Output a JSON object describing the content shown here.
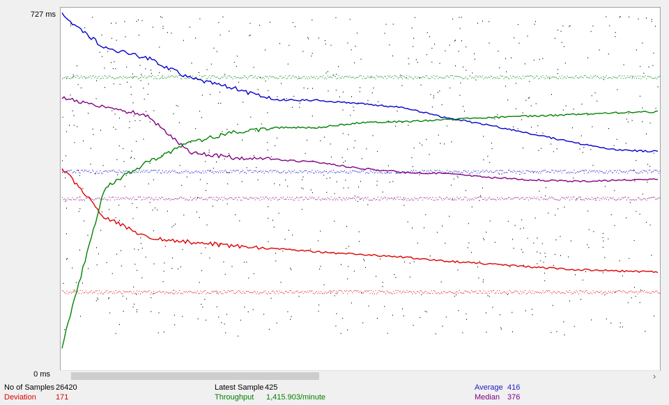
{
  "axis": {
    "y_max_label": "727  ms",
    "y_min_label": "0  ms"
  },
  "stats": {
    "samples_label": "No of Samples",
    "samples_value": "26420",
    "deviation_label": "Deviation",
    "deviation_value": "171",
    "latest_label": "Latest Sample",
    "latest_value": "425",
    "throughput_label": "Throughput",
    "throughput_value": "1,415.903/minute",
    "average_label": "Average",
    "average_value": "416",
    "median_label": "Median",
    "median_value": "376"
  },
  "colors": {
    "data": "#000000",
    "average": "#0000cc",
    "median": "#800080",
    "deviation": "#dd0000",
    "throughput": "#008000",
    "plot_bg": "#ffffff"
  },
  "icons": {
    "scroll_right": "›"
  },
  "chart_data": {
    "type": "scatter",
    "ylim": [
      0,
      727
    ],
    "y_unit": "ms",
    "series": [
      {
        "name": "Average",
        "values": [
          727,
          660,
          640,
          600,
          580,
          555,
          555,
          548,
          540,
          520,
          505,
          488,
          470,
          455,
          452
        ]
      },
      {
        "name": "Median",
        "values": [
          560,
          540,
          525,
          450,
          440,
          436,
          430,
          418,
          410,
          408,
          400,
          395,
          392,
          394,
          396
        ]
      },
      {
        "name": "Deviation",
        "values": [
          420,
          320,
          280,
          270,
          262,
          257,
          250,
          245,
          240,
          232,
          226,
          220,
          215,
          212,
          210
        ]
      },
      {
        "name": "Throughput",
        "values": [
          60,
          380,
          430,
          470,
          490,
          500,
          500,
          510,
          512,
          516,
          520,
          523,
          526,
          530,
          532
        ]
      }
    ]
  }
}
